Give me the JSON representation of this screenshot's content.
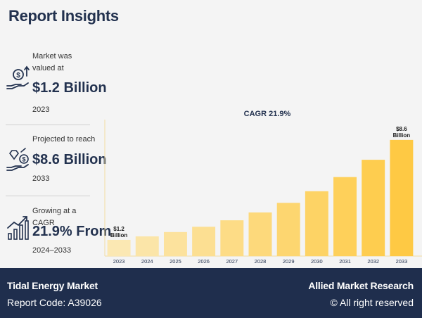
{
  "page": {
    "title": "Report Insights"
  },
  "stats": [
    {
      "caption": "Market was valued at",
      "value": "$1.2 Billion",
      "year": "2023",
      "icon": "money-hand-icon"
    },
    {
      "caption": "Projected to reach",
      "value": "$8.6 Billion",
      "year": "2033",
      "icon": "diamond-hand-icon"
    },
    {
      "caption": "Growing at a CAGR",
      "value": "21.9% From",
      "year": "2024–2033",
      "icon": "growth-chart-icon"
    }
  ],
  "chart_data": {
    "type": "bar",
    "title": "CAGR 21.9%",
    "categories": [
      "2023",
      "2024",
      "2025",
      "2026",
      "2027",
      "2028",
      "2029",
      "2030",
      "2031",
      "2032",
      "2033"
    ],
    "values": [
      1.2,
      1.46,
      1.78,
      2.17,
      2.65,
      3.23,
      3.94,
      4.8,
      5.85,
      7.13,
      8.6
    ],
    "ylim": [
      0,
      10
    ],
    "xlabel": "",
    "ylabel": "",
    "annotations": [
      {
        "category": "2023",
        "lines": [
          "$1.2",
          "Billion"
        ]
      },
      {
        "category": "2033",
        "lines": [
          "$8.6",
          "Billion"
        ]
      }
    ],
    "colors": [
      "#fbe8b3",
      "#fbe5a8",
      "#fce29d",
      "#fcdf92",
      "#fddc86",
      "#fdd97b",
      "#fdd670",
      "#fdd365",
      "#fed05a",
      "#fecd4f",
      "#fec944"
    ]
  },
  "footer": {
    "report_name": "Tidal Energy Market",
    "report_code": "Report Code: A39026",
    "brand": "Allied Market Research",
    "rights": "© All right reserved"
  }
}
